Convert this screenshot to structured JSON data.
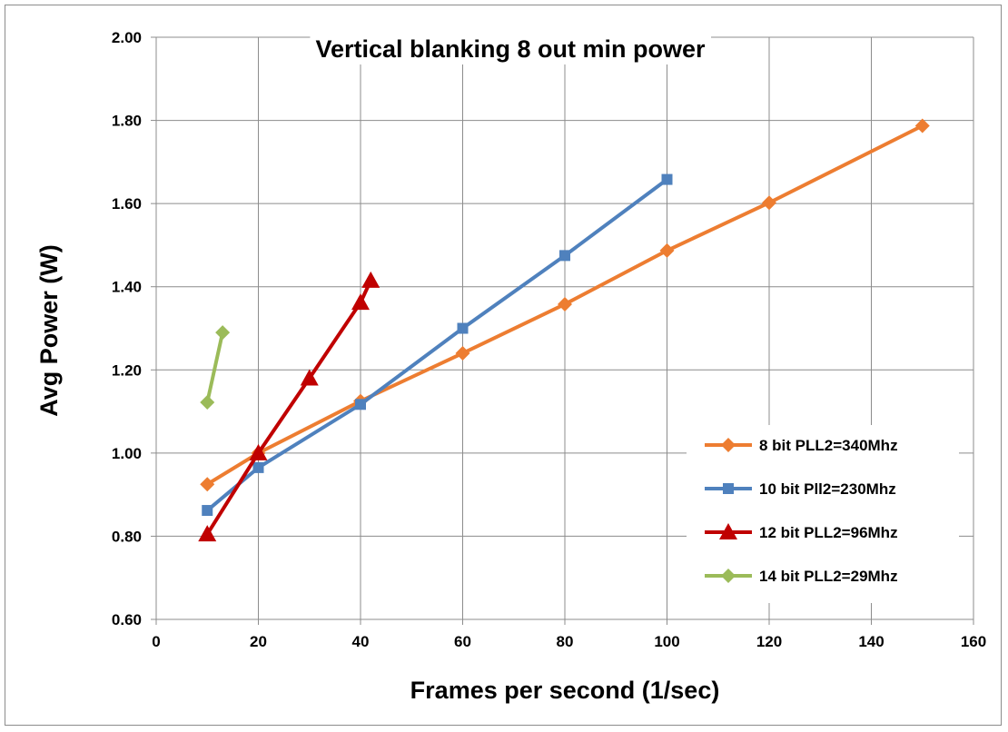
{
  "chart_data": {
    "type": "line",
    "title": "Vertical blanking 8 out  min power",
    "xlabel": "Frames per second (1/sec)",
    "ylabel": "Avg Power (W)",
    "xlim": [
      0,
      160
    ],
    "ylim": [
      0.6,
      2.0
    ],
    "xticks": [
      "0",
      "20",
      "40",
      "60",
      "80",
      "100",
      "120",
      "140",
      "160"
    ],
    "yticks": [
      "0.60",
      "0.80",
      "1.00",
      "1.20",
      "1.40",
      "1.60",
      "1.80",
      "2.00"
    ],
    "grid": true,
    "legend_position": "right",
    "series": [
      {
        "name": "8 bit PLL2=340Mhz",
        "color": "#ED7D31",
        "marker": "diamond",
        "x": [
          10,
          20,
          40,
          60,
          80,
          100,
          120,
          150
        ],
        "y": [
          0.925,
          1.0,
          1.125,
          1.24,
          1.358,
          1.487,
          1.602,
          1.787
        ]
      },
      {
        "name": "10 bit Pll2=230Mhz",
        "color": "#4F81BD",
        "marker": "square",
        "x": [
          10,
          20,
          40,
          60,
          80,
          100
        ],
        "y": [
          0.862,
          0.965,
          1.117,
          1.3,
          1.475,
          1.658
        ]
      },
      {
        "name": "12 bit PLL2=96Mhz",
        "color": "#C00000",
        "marker": "triangle",
        "x": [
          10,
          20,
          30,
          40,
          42
        ],
        "y": [
          0.805,
          1.0,
          1.18,
          1.362,
          1.415
        ]
      },
      {
        "name": "14 bit PLL2=29Mhz",
        "color": "#9BBB59",
        "marker": "diamond",
        "x": [
          10,
          13
        ],
        "y": [
          1.122,
          1.29
        ]
      }
    ]
  }
}
